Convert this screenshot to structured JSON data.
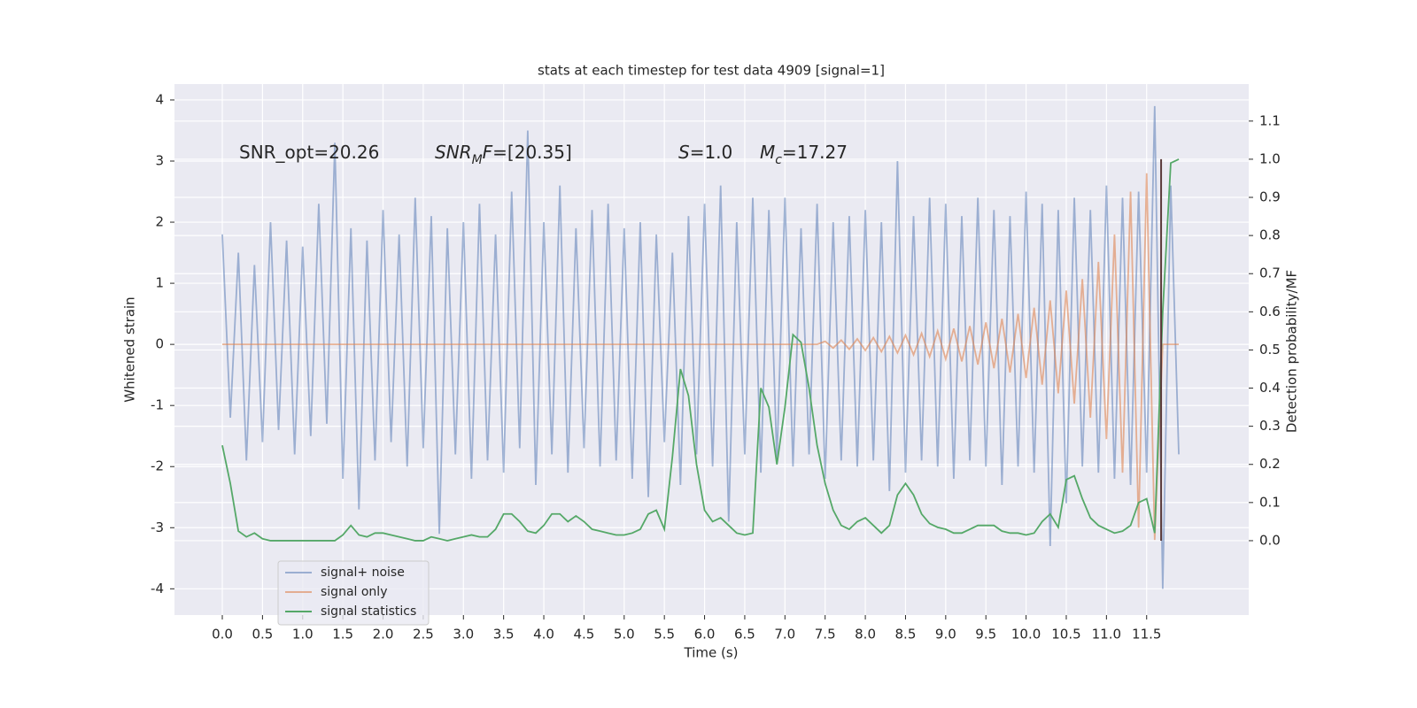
{
  "chart_data": {
    "type": "line",
    "title": "stats at each timestep for test data 4909 [signal=1]",
    "xlabel": "Time (s)",
    "ylabel": "Whitened strain",
    "y2label": "Detection probability/MF",
    "annotations": [
      [
        {
          "text": "SNR_opt=20.26"
        }
      ],
      [
        {
          "text": "SNR",
          "italic": true
        },
        {
          "text": "M",
          "italic": true,
          "sub": true
        },
        {
          "text": "F",
          "italic": true
        },
        {
          "text": "=[20.35]"
        }
      ],
      [
        {
          "text": "S",
          "italic": true
        },
        {
          "text": "=1.0"
        }
      ],
      [
        {
          "text": "M",
          "italic": true
        },
        {
          "text": "c",
          "italic": true,
          "sub": true
        },
        {
          "text": "=17.27"
        }
      ]
    ],
    "x": [
      0,
      0.1,
      0.2,
      0.3,
      0.4,
      0.5,
      0.6,
      0.7,
      0.8,
      0.9,
      1,
      1.1,
      1.2,
      1.3,
      1.4,
      1.5,
      1.6,
      1.7,
      1.8,
      1.9,
      2,
      2.1,
      2.2,
      2.3,
      2.4,
      2.5,
      2.6,
      2.7,
      2.8,
      2.9,
      3,
      3.1,
      3.2,
      3.3,
      3.4,
      3.5,
      3.6,
      3.7,
      3.8,
      3.9,
      4,
      4.1,
      4.2,
      4.3,
      4.4,
      4.5,
      4.6,
      4.7,
      4.8,
      4.9,
      5,
      5.1,
      5.2,
      5.3,
      5.4,
      5.5,
      5.6,
      5.7,
      5.8,
      5.9,
      6,
      6.1,
      6.2,
      6.3,
      6.4,
      6.5,
      6.6,
      6.7,
      6.8,
      6.9,
      7,
      7.1,
      7.2,
      7.3,
      7.4,
      7.5,
      7.6,
      7.7,
      7.8,
      7.9,
      8,
      8.1,
      8.2,
      8.3,
      8.4,
      8.5,
      8.6,
      8.7,
      8.8,
      8.9,
      9,
      9.1,
      9.2,
      9.3,
      9.4,
      9.5,
      9.6,
      9.7,
      9.8,
      9.9,
      10,
      10.1,
      10.2,
      10.3,
      10.4,
      10.5,
      10.6,
      10.7,
      10.8,
      10.9,
      11,
      11.1,
      11.2,
      11.3,
      11.4,
      11.5,
      11.6,
      11.7,
      11.8,
      11.9
    ],
    "series": [
      {
        "name": "signal+ noise",
        "color": "#4c72b0",
        "opacity": 0.5,
        "values": [
          1.8,
          -1.2,
          1.5,
          -1.9,
          1.3,
          -1.6,
          2.0,
          -1.4,
          1.7,
          -1.8,
          1.6,
          -1.5,
          2.3,
          -1.3,
          3.3,
          -2.2,
          1.9,
          -2.7,
          1.7,
          -1.9,
          2.2,
          -1.6,
          1.8,
          -2.0,
          2.4,
          -1.7,
          2.1,
          -3.1,
          1.9,
          -1.8,
          2.0,
          -2.2,
          2.3,
          -1.9,
          1.8,
          -2.1,
          2.5,
          -1.7,
          3.5,
          -2.3,
          2.0,
          -1.8,
          2.6,
          -2.1,
          1.9,
          -1.7,
          2.2,
          -2.0,
          2.3,
          -1.9,
          1.9,
          -2.2,
          2.0,
          -2.5,
          1.8,
          -1.6,
          1.5,
          -2.3,
          2.1,
          -1.8,
          2.3,
          -2.0,
          2.6,
          -2.9,
          2.0,
          -1.8,
          2.4,
          -2.1,
          2.2,
          -1.9,
          2.4,
          -2.0,
          1.9,
          -1.8,
          2.3,
          -2.2,
          2.0,
          -1.9,
          2.1,
          -2.0,
          2.2,
          -1.9,
          2.0,
          -2.4,
          3.0,
          -2.1,
          2.1,
          -1.9,
          2.4,
          -2.0,
          2.3,
          -2.2,
          2.1,
          -1.9,
          2.4,
          -2.0,
          2.2,
          -2.3,
          2.1,
          -2.0,
          2.5,
          -2.1,
          2.3,
          -3.3,
          2.2,
          -2.6,
          2.4,
          -2.0,
          2.2,
          -2.1,
          2.6,
          -2.2,
          2.4,
          -2.3,
          2.5,
          -2.1,
          3.9,
          -4.0,
          2.6,
          -1.8
        ]
      },
      {
        "name": "signal only",
        "color": "#dd8452",
        "opacity": 0.6,
        "values": [
          0,
          0,
          0,
          0,
          0,
          0,
          0,
          0,
          0,
          0,
          0,
          0,
          0,
          0,
          0,
          0,
          0,
          0,
          0,
          0,
          0,
          0,
          0,
          0,
          0,
          0,
          0,
          0,
          0,
          0,
          0,
          0,
          0,
          0,
          0,
          0,
          0,
          0,
          0,
          0,
          0,
          0,
          0,
          0,
          0,
          0,
          0,
          0,
          0,
          0,
          0,
          0,
          0,
          0,
          0,
          0,
          0,
          0,
          0,
          0,
          0,
          0,
          0,
          0,
          0,
          0,
          0,
          0,
          0,
          0,
          0,
          0,
          0,
          0,
          0,
          0.05,
          -0.06,
          0.07,
          -0.08,
          0.09,
          -0.1,
          0.11,
          -0.12,
          0.13,
          -0.14,
          0.15,
          -0.17,
          0.18,
          -0.2,
          0.22,
          -0.24,
          0.26,
          -0.28,
          0.3,
          -0.33,
          0.36,
          -0.39,
          0.42,
          -0.46,
          0.5,
          -0.55,
          0.6,
          -0.66,
          0.72,
          -0.8,
          0.88,
          -0.97,
          1.07,
          -1.2,
          1.35,
          -1.55,
          1.8,
          -2.1,
          2.5,
          -3.0,
          2.8,
          -3.2,
          0,
          0,
          0
        ]
      },
      {
        "name": "signal statistics",
        "color": "#55a868",
        "opacity": 1,
        "axis": "y2",
        "values": [
          0.25,
          0.15,
          0.025,
          0.01,
          0.02,
          0.005,
          0,
          0,
          0,
          0,
          0,
          0,
          0,
          0,
          0,
          0.015,
          0.04,
          0.015,
          0.01,
          0.02,
          0.02,
          0.015,
          0.01,
          0.005,
          0,
          0,
          0.01,
          0.005,
          0,
          0.005,
          0.01,
          0.015,
          0.01,
          0.01,
          0.03,
          0.07,
          0.07,
          0.05,
          0.025,
          0.02,
          0.04,
          0.07,
          0.07,
          0.05,
          0.065,
          0.05,
          0.03,
          0.025,
          0.02,
          0.015,
          0.015,
          0.02,
          0.03,
          0.07,
          0.08,
          0.03,
          0.22,
          0.45,
          0.38,
          0.2,
          0.08,
          0.05,
          0.06,
          0.04,
          0.02,
          0.015,
          0.02,
          0.4,
          0.35,
          0.2,
          0.35,
          0.54,
          0.52,
          0.4,
          0.25,
          0.15,
          0.08,
          0.04,
          0.03,
          0.05,
          0.06,
          0.04,
          0.02,
          0.04,
          0.12,
          0.15,
          0.12,
          0.07,
          0.045,
          0.035,
          0.03,
          0.02,
          0.02,
          0.03,
          0.04,
          0.04,
          0.04,
          0.025,
          0.02,
          0.02,
          0.015,
          0.02,
          0.05,
          0.07,
          0.035,
          0.16,
          0.17,
          0.11,
          0.06,
          0.04,
          0.03,
          0.02,
          0.025,
          0.04,
          0.1,
          0.11,
          0.02,
          0.6,
          0.99,
          1.0
        ]
      }
    ],
    "vline": {
      "x": 11.68,
      "y2": [
        0,
        1
      ],
      "color": "#5a3a3a"
    },
    "xlim": [
      -0.595,
      12.77
    ],
    "xticks": [
      {
        "value": 0,
        "label": "0.0"
      },
      0.5,
      {
        "value": 1,
        "label": "1.0"
      },
      1.5,
      {
        "value": 2,
        "label": "2.0"
      },
      2.5,
      {
        "value": 3,
        "label": "3.0"
      },
      3.5,
      {
        "value": 4,
        "label": "4.0"
      },
      4.5,
      {
        "value": 5,
        "label": "5.0"
      },
      5.5,
      {
        "value": 6,
        "label": "6.0"
      },
      6.5,
      {
        "value": 7,
        "label": "7.0"
      },
      7.5,
      {
        "value": 8,
        "label": "8.0"
      },
      8.5,
      {
        "value": 9,
        "label": "9.0"
      },
      9.5,
      {
        "value": 10,
        "label": "10.0"
      },
      10.5,
      {
        "value": 11,
        "label": "11.0"
      },
      11.5
    ],
    "ylim": [
      -4.43,
      4.26
    ],
    "yticks": [
      -4,
      -3,
      -2,
      -1,
      0,
      1,
      2,
      3,
      4
    ],
    "y2lim": [
      -0.195,
      1.197
    ],
    "y2ticks": [
      {
        "value": 0,
        "label": "0.0"
      },
      0.1,
      0.2,
      0.3,
      0.4,
      0.5,
      0.6,
      0.7,
      0.8,
      0.9,
      {
        "value": 1,
        "label": "1.0"
      },
      1.1
    ],
    "grid": true,
    "legend": "lower left"
  }
}
